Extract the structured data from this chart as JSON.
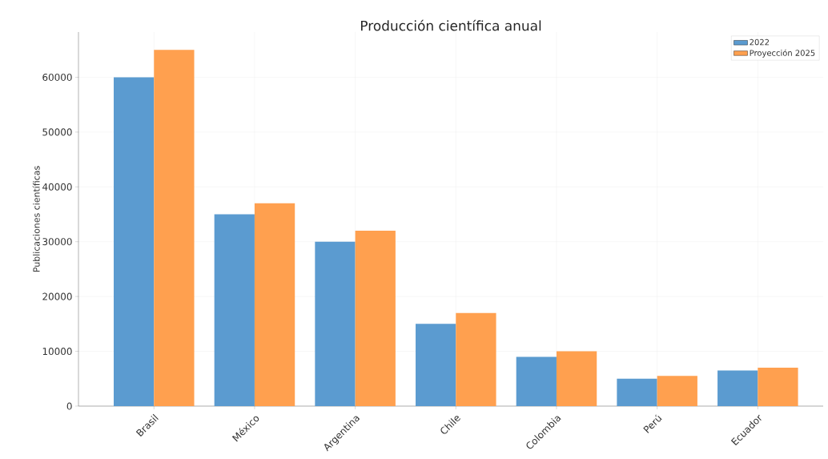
{
  "chart_data": {
    "type": "bar",
    "title": "Producción científica anual",
    "ylabel": "Publicaciones científicas",
    "categories": [
      "Brasil",
      "México",
      "Argentina",
      "Chile",
      "Colombia",
      "Perú",
      "Ecuador"
    ],
    "series": [
      {
        "name": "2022",
        "color": "#5b9bd0",
        "values": [
          60000,
          35000,
          30000,
          15000,
          9000,
          5000,
          6500
        ]
      },
      {
        "name": "Proyección 2025",
        "color": "#ffa04f",
        "values": [
          65000,
          37000,
          32000,
          17000,
          10000,
          5500,
          7000
        ]
      }
    ],
    "ylim": [
      0,
      68250
    ],
    "yticks": [
      0,
      10000,
      20000,
      30000,
      40000,
      50000,
      60000
    ],
    "grid": true,
    "legend": "top right"
  }
}
